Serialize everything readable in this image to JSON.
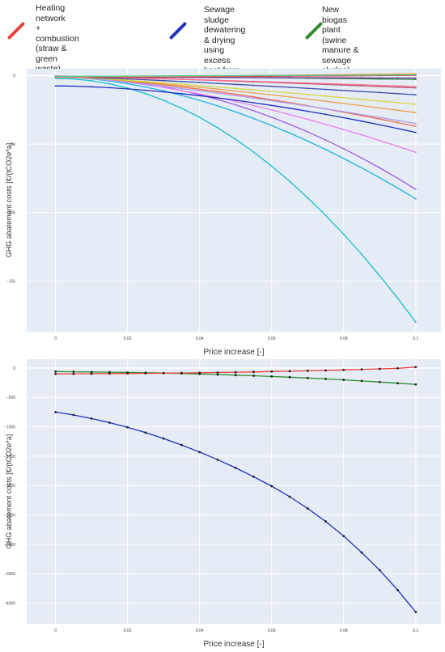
{
  "legend": [
    {
      "color": "#e8413c",
      "label": "Heating network\n+ combustion (straw &\ngreen waste)\n+ biogas plant (cattle\nmanure + biowaste +\ngreen waste"
    },
    {
      "color": "#1f2fbf",
      "label": "Sewage sludge\ndewatering & drying using\nexcess heat from existing\nbiogas plant"
    },
    {
      "color": "#2e8b2e",
      "label": "New biogas plant (swine\nmanure & sewage sludge)\n+ biogas upgrading to fuel"
    }
  ],
  "chart_data": [
    {
      "type": "line",
      "xlabel": "Price increase [-]",
      "ylabel": "GHG abatement costs [€/(tCO2e*a]",
      "xlim": [
        -0.008,
        0.107
      ],
      "ylim": [
        -18700,
        500
      ],
      "x_ticks": [
        0,
        0.02,
        0.04,
        0.06,
        0.08,
        0.1
      ],
      "x_tick_labels": [
        "0",
        "0.02",
        "0.04",
        "0.06",
        "0.08",
        "0.1"
      ],
      "y_ticks": [
        0,
        -5000,
        -10000,
        -15000
      ],
      "y_tick_labels": [
        "0",
        "−5k",
        "−10k",
        "−15k"
      ],
      "grid": true,
      "x": [
        0,
        0.005,
        0.01,
        0.015,
        0.02,
        0.025,
        0.03,
        0.035,
        0.04,
        0.045,
        0.05,
        0.055,
        0.06,
        0.065,
        0.07,
        0.075,
        0.08,
        0.085,
        0.09,
        0.095,
        0.1
      ],
      "series": [
        {
          "color": "#17becf",
          "endpoints": [
            -200,
            -18000
          ],
          "curvature": 2
        },
        {
          "color": "#1ab4e6",
          "endpoints": [
            -100,
            -9000
          ],
          "curvature": 1.8
        },
        {
          "color": "#a05ce8",
          "endpoints": [
            -80,
            -8300
          ],
          "curvature": 2
        },
        {
          "color": "#e57ef0",
          "endpoints": [
            -60,
            -5600
          ],
          "curvature": 1.6
        },
        {
          "color": "#1f2fbf",
          "endpoints": [
            -750,
            -4150
          ],
          "curvature": 1.7
        },
        {
          "color": "#f26b4d",
          "endpoints": [
            -80,
            -3700
          ],
          "curvature": 1.5
        },
        {
          "color": "#b09be8",
          "endpoints": [
            -60,
            -3500
          ],
          "curvature": 1.3
        },
        {
          "color": "#e3a24a",
          "endpoints": [
            -50,
            -2700
          ],
          "curvature": 1.3
        },
        {
          "color": "#d6d64a",
          "endpoints": [
            -40,
            -2100
          ],
          "curvature": 1.2
        },
        {
          "color": "#3b4ca8",
          "endpoints": [
            -50,
            -1400
          ],
          "curvature": 1.2
        },
        {
          "color": "#b05a7a",
          "endpoints": [
            -30,
            -900
          ],
          "curvature": 1.2
        },
        {
          "color": "#ff6b8a",
          "endpoints": [
            -20,
            -800
          ],
          "curvature": 1.1
        },
        {
          "color": "#2e8b2e",
          "endpoints": [
            -60,
            -280
          ],
          "curvature": 1.5
        },
        {
          "color": "#6e3aa8",
          "endpoints": [
            -100,
            -180
          ],
          "curvature": 1
        },
        {
          "color": "#e8413c",
          "endpoints": [
            -100,
            15
          ],
          "curvature": 1.5
        },
        {
          "color": "#ff9f2e",
          "endpoints": [
            -80,
            130
          ],
          "curvature": 1.5
        },
        {
          "color": "#4cc9a0",
          "endpoints": [
            -50,
            50
          ],
          "curvature": 1
        }
      ]
    },
    {
      "type": "line",
      "xlabel": "Price increase [-]",
      "ylabel": "GHG abatement costs [€/(tCO2e*a]",
      "xlim": [
        -0.008,
        0.107
      ],
      "ylim": [
        -4350,
        150
      ],
      "x_ticks": [
        0,
        0.02,
        0.04,
        0.06,
        0.08,
        0.1
      ],
      "x_tick_labels": [
        "0",
        "0.02",
        "0.04",
        "0.06",
        "0.08",
        "0.1"
      ],
      "y_ticks": [
        0,
        -500,
        -1000,
        -1500,
        -2000,
        -2500,
        -3000,
        -3500,
        -4000
      ],
      "y_tick_labels": [
        "0",
        "−500",
        "−1000",
        "−1500",
        "−2000",
        "−2500",
        "−3000",
        "−3500",
        "−4000"
      ],
      "grid": true,
      "x": [
        0,
        0.005,
        0.01,
        0.015,
        0.02,
        0.025,
        0.03,
        0.035,
        0.04,
        0.045,
        0.05,
        0.055,
        0.06,
        0.065,
        0.07,
        0.075,
        0.08,
        0.085,
        0.09,
        0.095,
        0.1
      ],
      "series": [
        {
          "color": "#1f2fbf",
          "values": [
            -750,
            -800,
            -860,
            -930,
            -1010,
            -1100,
            -1200,
            -1310,
            -1430,
            -1560,
            -1700,
            -1850,
            -2010,
            -2190,
            -2390,
            -2610,
            -2860,
            -3140,
            -3440,
            -3780,
            -4150
          ]
        },
        {
          "color": "#2e8b2e",
          "values": [
            -60,
            -64,
            -68,
            -72,
            -76,
            -81,
            -87,
            -94,
            -102,
            -111,
            -121,
            -132,
            -144,
            -157,
            -171,
            -186,
            -202,
            -220,
            -239,
            -259,
            -280
          ]
        },
        {
          "color": "#e8413c",
          "values": [
            -100,
            -99,
            -97,
            -95,
            -93,
            -91,
            -88,
            -85,
            -81,
            -77,
            -72,
            -67,
            -61,
            -55,
            -48,
            -41,
            -33,
            -24,
            -15,
            -5,
            15
          ]
        }
      ]
    }
  ]
}
